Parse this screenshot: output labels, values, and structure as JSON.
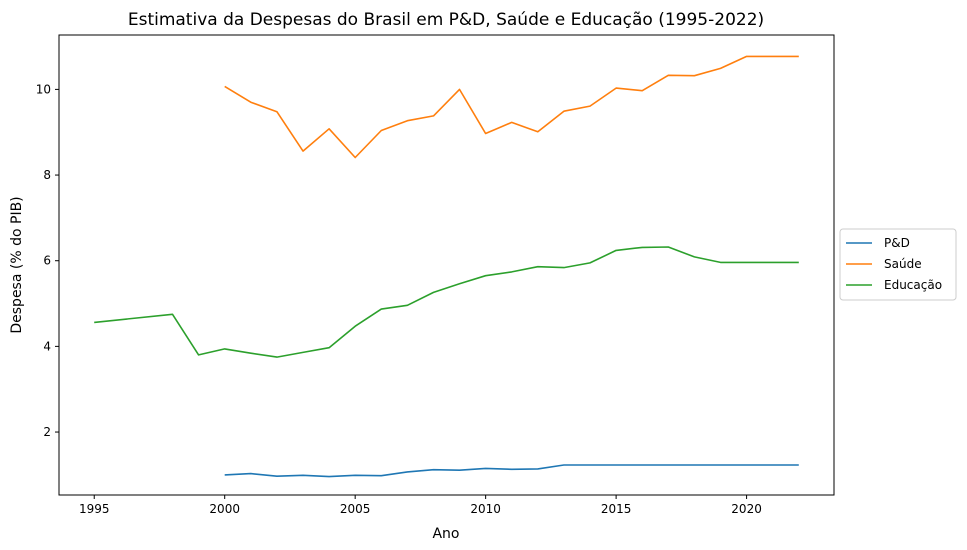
{
  "chart_data": {
    "type": "line",
    "title": "Estimativa da Despesas do Brasil em P&D, Saúde e Educação (1995-2022)",
    "xlabel": "Ano",
    "ylabel": "Despesa (% do PIB)",
    "xlim": [
      1993.65,
      2023.35
    ],
    "ylim": [
      0.53,
      11.27
    ],
    "xticks": [
      1995,
      2000,
      2005,
      2010,
      2015,
      2020
    ],
    "yticks": [
      2,
      4,
      6,
      8,
      10
    ],
    "grid": false,
    "legend_position": "center-right-outside",
    "series": [
      {
        "name": "P&D",
        "color": "#1f77b4",
        "x": [
          2000,
          2001,
          2002,
          2003,
          2004,
          2005,
          2006,
          2007,
          2008,
          2009,
          2010,
          2011,
          2012,
          2013,
          2014,
          2015,
          2016,
          2017,
          2018,
          2019,
          2020,
          2021,
          2022
        ],
        "y": [
          1.0,
          1.03,
          0.97,
          0.99,
          0.96,
          0.99,
          0.98,
          1.07,
          1.12,
          1.11,
          1.15,
          1.13,
          1.14,
          1.23,
          1.23,
          1.23,
          1.23,
          1.23,
          1.23,
          1.23,
          1.23,
          1.23,
          1.23
        ]
      },
      {
        "name": "Saúde",
        "color": "#ff7f0e",
        "x": [
          2000,
          2001,
          2002,
          2003,
          2004,
          2005,
          2006,
          2007,
          2008,
          2009,
          2010,
          2011,
          2012,
          2013,
          2014,
          2015,
          2016,
          2017,
          2018,
          2019,
          2020,
          2021,
          2022
        ],
        "y": [
          10.07,
          9.7,
          9.48,
          8.56,
          9.08,
          8.41,
          9.04,
          9.27,
          9.38,
          10.0,
          8.97,
          9.23,
          9.01,
          9.49,
          9.61,
          10.03,
          9.97,
          10.33,
          10.32,
          10.49,
          10.77,
          10.77,
          10.77
        ]
      },
      {
        "name": "Educação",
        "color": "#2ca02c",
        "x": [
          1995,
          1998,
          1999,
          2000,
          2001,
          2002,
          2003,
          2004,
          2005,
          2006,
          2007,
          2008,
          2009,
          2010,
          2011,
          2012,
          2013,
          2014,
          2015,
          2016,
          2017,
          2018,
          2019,
          2020,
          2021,
          2022
        ],
        "y": [
          4.56,
          4.75,
          3.8,
          3.94,
          3.84,
          3.75,
          3.86,
          3.97,
          4.47,
          4.87,
          4.96,
          5.26,
          5.46,
          5.65,
          5.74,
          5.86,
          5.84,
          5.95,
          6.24,
          6.31,
          6.32,
          6.09,
          5.96,
          5.96,
          5.96,
          5.96
        ]
      }
    ]
  }
}
